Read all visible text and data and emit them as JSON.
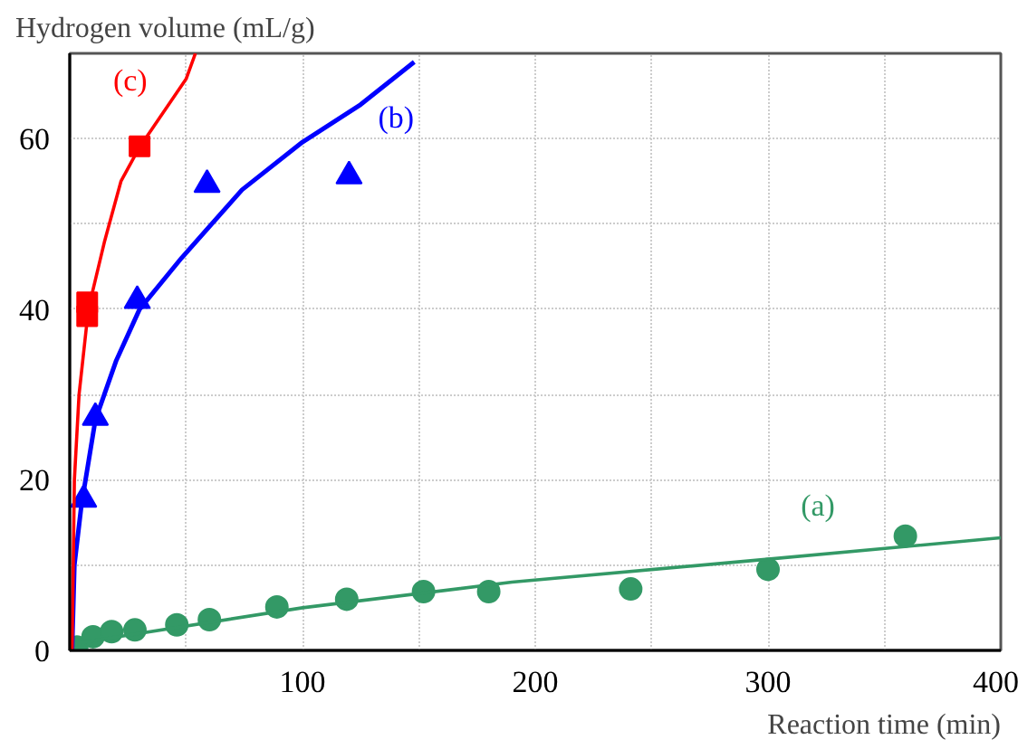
{
  "chart_data": {
    "type": "scatter",
    "xlabel": "Reaction time (min)",
    "ylabel": "Hydrogen volume (mL/g)",
    "xlim": [
      0,
      400
    ],
    "ylim": [
      0,
      70
    ],
    "xticks": [
      {
        "value": 0,
        "label": null
      },
      {
        "value": 50,
        "label": null
      },
      100,
      {
        "value": 150,
        "label": null
      },
      200,
      {
        "value": 250,
        "label": null
      },
      300,
      {
        "value": 350,
        "label": null
      },
      400
    ],
    "yticks": [
      0,
      {
        "value": 10,
        "label": null
      },
      20,
      {
        "value": 30,
        "label": null
      },
      40,
      {
        "value": 50,
        "label": null
      },
      60
    ],
    "grid": true,
    "series": [
      {
        "marker": "circle",
        "color": "#339966",
        "x": [
          3,
          10,
          18,
          28,
          46,
          60,
          89,
          119,
          152,
          180,
          241,
          300,
          359
        ],
        "values": [
          0.4,
          1.6,
          2.2,
          2.4,
          3.0,
          3.6,
          5.1,
          6.0,
          6.9,
          6.9,
          7.2,
          9.5,
          13.4
        ]
      },
      {
        "type": "line",
        "name": "(a)",
        "color": "#339966",
        "x": [
          2,
          100,
          190,
          300,
          400
        ],
        "values": [
          0.8,
          5.0,
          8.0,
          10.7,
          13.2
        ]
      },
      {
        "marker": "triangle",
        "color": "#0000ff",
        "x": [
          6,
          11,
          29,
          59,
          120
        ],
        "values": [
          17.7,
          27.3,
          41.0,
          54.6,
          55.6
        ]
      },
      {
        "type": "line",
        "name": "(b)",
        "color": "#0000ff",
        "x": [
          1,
          2,
          5,
          11,
          20,
          30,
          48,
          74,
          100,
          125,
          148
        ],
        "values": [
          0,
          10,
          17,
          27,
          34,
          40,
          46,
          54,
          59.6,
          64,
          69
        ]
      },
      {
        "marker": "square",
        "color": "#ff0000",
        "x": [
          7.5,
          7.5,
          30
        ],
        "values": [
          39.2,
          40.8,
          59.1
        ]
      },
      {
        "type": "line",
        "name": "(c)",
        "color": "#ff0000",
        "x": [
          1,
          2,
          4,
          8,
          15,
          22,
          30,
          40,
          50,
          54
        ],
        "values": [
          0,
          20,
          30,
          40,
          48,
          55,
          59,
          63,
          67,
          70
        ]
      }
    ]
  }
}
